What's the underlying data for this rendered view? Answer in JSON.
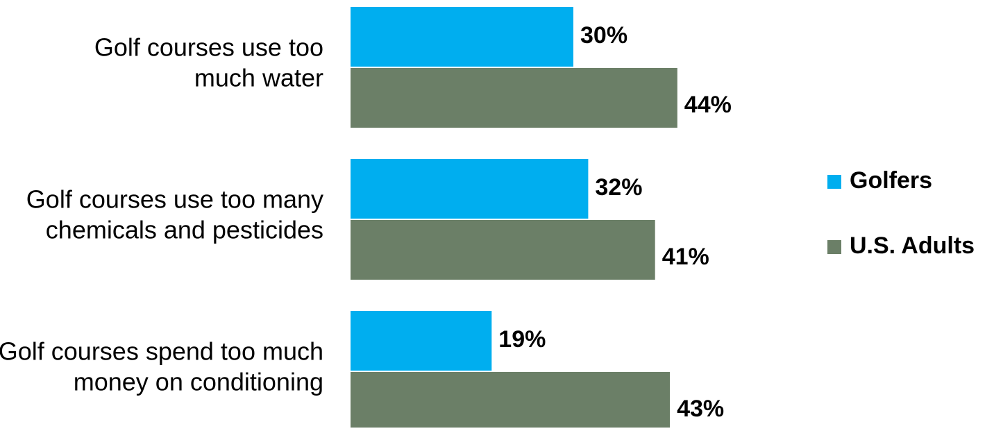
{
  "chart_data": {
    "type": "bar",
    "orientation": "horizontal",
    "categories": [
      [
        "Golf courses use too",
        "much water"
      ],
      [
        "Golf courses use too many",
        "chemicals and pesticides"
      ],
      [
        "Golf courses spend too much",
        "money on conditioning"
      ]
    ],
    "series": [
      {
        "name": "Golfers",
        "color": "#00AEEF",
        "values": [
          30,
          32,
          19
        ],
        "labels": [
          "30%",
          "32%",
          "19%"
        ]
      },
      {
        "name": "U.S. Adults",
        "color": "#6B7F67",
        "values": [
          44,
          41,
          43
        ],
        "labels": [
          "44%",
          "41%",
          "43%"
        ]
      }
    ],
    "value_unit": "%",
    "xlim": [
      0,
      100
    ],
    "title": "",
    "xlabel": "",
    "ylabel": "",
    "grid": false,
    "legend_position": "right"
  }
}
